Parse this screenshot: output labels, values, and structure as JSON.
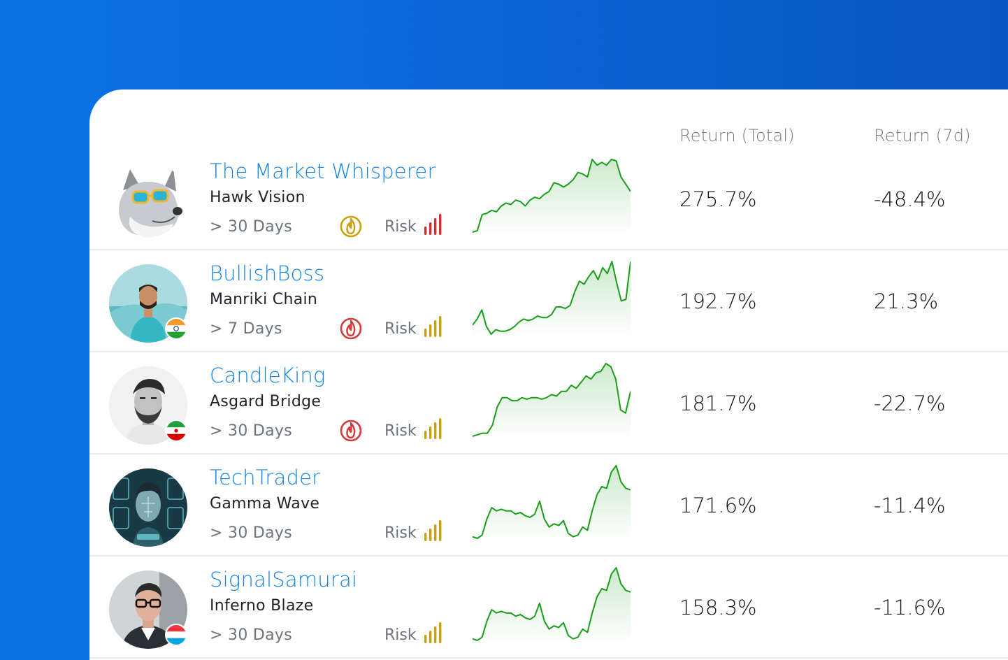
{
  "columns": {
    "return_total": "Return (Total)",
    "return_7d": "Return (7d)"
  },
  "colors": {
    "name": "#1284e6",
    "spark": "#1a9e1a",
    "risk_high": "#d32f2f",
    "risk_medium": "#c9a010",
    "fire_gold": "#c9a010",
    "fire_red": "#d33b3b"
  },
  "traders": [
    {
      "name": "The Market Whisperer",
      "strategy": "Hawk Vision",
      "period": "> 30 Days",
      "risk_label": "Risk",
      "risk_level": "high",
      "badge": "fire-gold",
      "flag": "",
      "avatar": "wolf-with-sunglasses",
      "return_total": "275.7%",
      "return_7d": "-48.4%",
      "spark": [
        2,
        3,
        14,
        15,
        17,
        16,
        20,
        22,
        21,
        24,
        23,
        20,
        24,
        26,
        25,
        28,
        30,
        36,
        35,
        33,
        35,
        38,
        43,
        42,
        40,
        52,
        48,
        50,
        48,
        52,
        51,
        40,
        35,
        30
      ]
    },
    {
      "name": "BullishBoss",
      "strategy": "Manriki Chain",
      "period": "> 7 Days",
      "risk_label": "Risk",
      "risk_level": "medium",
      "badge": "fire-red",
      "flag": "india",
      "avatar": "man-teal-shirt",
      "return_total": "192.7%",
      "return_7d": "21.3%",
      "spark": [
        8,
        12,
        18,
        7,
        2,
        5,
        4,
        4,
        5,
        7,
        10,
        12,
        11,
        12,
        14,
        13,
        13,
        15,
        20,
        20,
        19,
        21,
        30,
        37,
        35,
        40,
        44,
        38,
        46,
        42,
        50,
        36,
        24,
        25,
        50
      ]
    },
    {
      "name": "CandleKing",
      "strategy": "Asgard Bridge",
      "period": "> 30 Days",
      "risk_label": "Risk",
      "risk_level": "medium",
      "badge": "fire-red",
      "flag": "iran",
      "avatar": "bearded-man-bw",
      "return_total": "181.7%",
      "return_7d": "-22.7%",
      "spark": [
        3,
        4,
        5,
        5,
        10,
        22,
        28,
        28,
        26,
        26,
        28,
        27,
        28,
        28,
        27,
        28,
        30,
        29,
        32,
        32,
        36,
        34,
        38,
        42,
        40,
        44,
        45,
        50,
        48,
        40,
        20,
        18,
        32
      ]
    },
    {
      "name": "TechTrader",
      "strategy": "Gamma Wave",
      "period": "> 30 Days",
      "risk_label": "Risk",
      "risk_level": "medium",
      "badge": "",
      "flag": "",
      "avatar": "digital-face-hud",
      "return_total": "171.6%",
      "return_7d": "-11.4%",
      "spark": [
        4,
        3,
        5,
        15,
        22,
        20,
        21,
        20,
        20,
        18,
        19,
        17,
        16,
        18,
        26,
        15,
        10,
        12,
        11,
        14,
        6,
        4,
        5,
        10,
        8,
        20,
        30,
        35,
        34,
        44,
        48,
        38,
        34,
        33
      ]
    },
    {
      "name": "SignalSamurai",
      "strategy": "Inferno Blaze",
      "period": "> 30 Days",
      "risk_label": "Risk",
      "risk_level": "medium",
      "badge": "",
      "flag": "luxembourg",
      "avatar": "man-with-glasses",
      "return_total": "158.3%",
      "return_7d": "-11.6%",
      "spark": [
        4,
        3,
        5,
        15,
        22,
        20,
        21,
        20,
        20,
        18,
        19,
        17,
        16,
        18,
        26,
        15,
        10,
        12,
        11,
        14,
        6,
        4,
        5,
        10,
        8,
        20,
        30,
        35,
        34,
        44,
        48,
        38,
        34,
        33
      ]
    }
  ]
}
